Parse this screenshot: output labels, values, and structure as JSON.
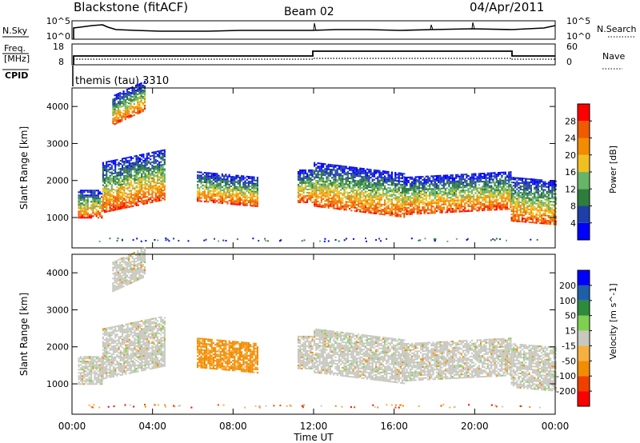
{
  "header": {
    "station": "Blackstone (fitACF)",
    "beam": "Beam 02",
    "date": "04/Apr/2011"
  },
  "panels": {
    "nsky": {
      "label": "N.Sky",
      "ticks_left": [
        "10^5",
        "10^0"
      ],
      "ticks_right": [
        "10^5",
        "10^0"
      ],
      "right_label": "N.Search"
    },
    "freq": {
      "label_1": "Freq.",
      "label_2": "[MHz]",
      "ticks_left": [
        "18",
        "8"
      ],
      "ticks_right": [
        "60",
        "0"
      ],
      "right_label": "Nave"
    },
    "cpid": {
      "label": "CPID",
      "value": "themis (tau) 3310"
    }
  },
  "colors": {
    "power": [
      "#0000ff",
      "#1f3fa8",
      "#2e7d3c",
      "#67b567",
      "#f0c020",
      "#f28c00",
      "#f05a00",
      "#ff0000"
    ],
    "velocity": [
      "#ff0000",
      "#f04000",
      "#f28c00",
      "#f7b040",
      "#c8c8c0",
      "#7fd050",
      "#2e8b3c",
      "#1f5fa8",
      "#0000ff"
    ],
    "scatter_gray": "#c8c8c0"
  },
  "chart_data": [
    {
      "type": "heatmap",
      "title": "Power",
      "ylabel": "Slant Range [km]",
      "xlim": [
        "00:00",
        "24:00"
      ],
      "ylim": [
        180,
        4500
      ],
      "yticks": [
        "1000",
        "2000",
        "3000",
        "4000"
      ],
      "colorbar": {
        "label": "Power [dB]",
        "ticks": [
          "4",
          "8",
          "12",
          "16",
          "20",
          "24",
          "28"
        ],
        "range": [
          0,
          32
        ]
      },
      "bands": [
        {
          "t0": 0.3,
          "t1": 1.5,
          "r_lo": 1000,
          "r_hi": 1750,
          "trend": 0
        },
        {
          "t0": 1.5,
          "t1": 4.6,
          "r_lo": 1150,
          "r_hi": 2500,
          "trend": 350
        },
        {
          "t0": 2.0,
          "t1": 3.6,
          "r_lo": 3500,
          "r_hi": 4300,
          "trend": 400
        },
        {
          "t0": 6.2,
          "t1": 9.2,
          "r_lo": 1450,
          "r_hi": 2250,
          "trend": -150
        },
        {
          "t0": 11.2,
          "t1": 11.9,
          "r_lo": 1400,
          "r_hi": 2300,
          "trend": 0
        },
        {
          "t0": 12.0,
          "t1": 16.5,
          "r_lo": 1300,
          "r_hi": 2500,
          "trend": -300
        },
        {
          "t0": 16.5,
          "t1": 21.8,
          "r_lo": 1100,
          "r_hi": 2100,
          "trend": 150
        },
        {
          "t0": 21.8,
          "t1": 24.0,
          "r_lo": 900,
          "r_hi": 2100,
          "trend": -100
        }
      ]
    },
    {
      "type": "heatmap",
      "title": "Velocity",
      "ylabel": "Slant Range [km]",
      "xlabel": "Time UT",
      "xlim": [
        "00:00",
        "24:00"
      ],
      "ylim": [
        180,
        4500
      ],
      "yticks": [
        "1000",
        "2000",
        "3000",
        "4000"
      ],
      "xticks": [
        "00:00",
        "04:00",
        "08:00",
        "12:00",
        "16:00",
        "20:00",
        "00:00"
      ],
      "colorbar": {
        "label": "Velocity [m s^-1]",
        "ticks": [
          "200",
          "100",
          "50",
          "15",
          "-15",
          "-50",
          "-100",
          "-200"
        ]
      },
      "bands": [
        {
          "t0": 0.3,
          "t1": 1.5,
          "r_lo": 1000,
          "r_hi": 1750,
          "trend": 0
        },
        {
          "t0": 1.5,
          "t1": 4.6,
          "r_lo": 1150,
          "r_hi": 2500,
          "trend": 350
        },
        {
          "t0": 2.0,
          "t1": 3.6,
          "r_lo": 3500,
          "r_hi": 4300,
          "trend": 400
        },
        {
          "t0": 6.2,
          "t1": 9.2,
          "r_lo": 1450,
          "r_hi": 2250,
          "trend": -150
        },
        {
          "t0": 11.2,
          "t1": 11.9,
          "r_lo": 1400,
          "r_hi": 2300,
          "trend": 0
        },
        {
          "t0": 12.0,
          "t1": 16.5,
          "r_lo": 1300,
          "r_hi": 2500,
          "trend": -300
        },
        {
          "t0": 16.5,
          "t1": 21.8,
          "r_lo": 1100,
          "r_hi": 2100,
          "trend": 150
        },
        {
          "t0": 21.8,
          "t1": 24.0,
          "r_lo": 900,
          "r_hi": 2100,
          "trend": -100
        }
      ]
    }
  ]
}
